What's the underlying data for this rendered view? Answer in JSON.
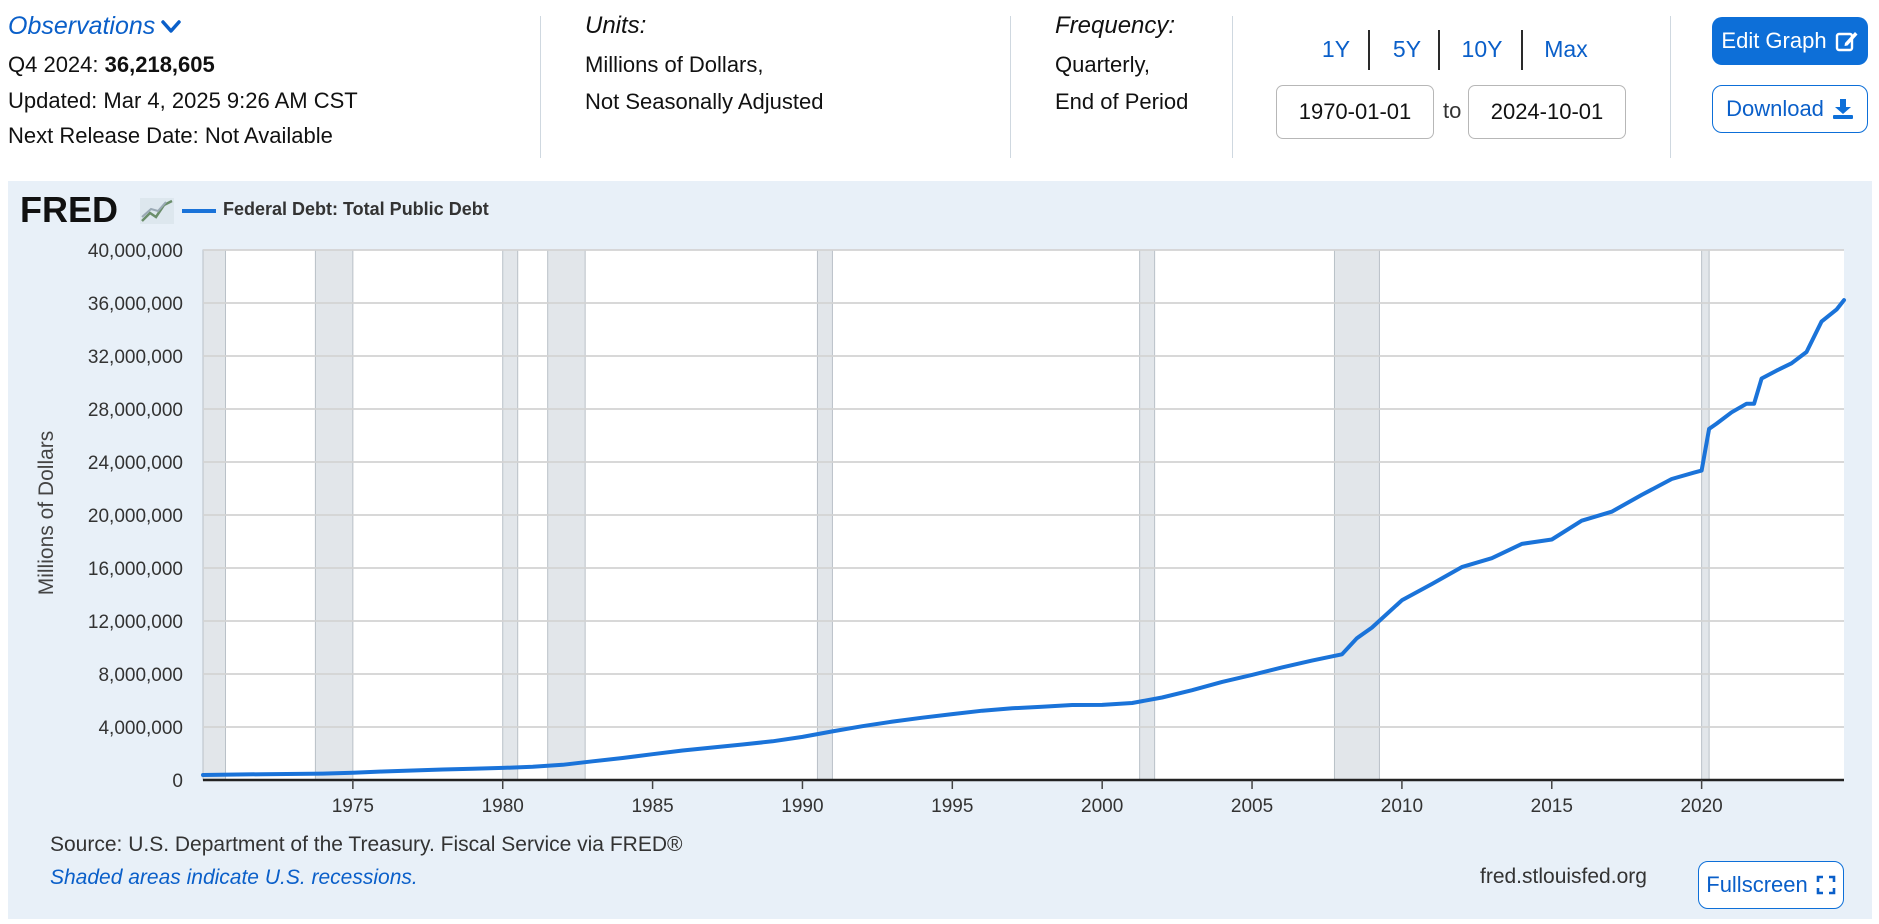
{
  "header": {
    "observations_label": "Observations",
    "obs_period": "Q4 2024:",
    "obs_value": "36,218,605",
    "updated": "Updated: Mar 4, 2025 9:26 AM CST",
    "next_release": "Next Release Date: Not Available",
    "units_label": "Units:",
    "units_line1": "Millions of Dollars,",
    "units_line2": "Not Seasonally Adjusted",
    "frequency_label": "Frequency:",
    "frequency_line1": "Quarterly,",
    "frequency_line2": "End of Period",
    "range_buttons": [
      "1Y",
      "5Y",
      "10Y",
      "Max"
    ],
    "date_from": "1970-01-01",
    "date_to_label": "to",
    "date_to": "2024-10-01",
    "edit_graph": "Edit Graph",
    "download": "Download"
  },
  "footer": {
    "source": "Source: U.S. Department of the Treasury. Fiscal Service via FRED®",
    "shaded_note": "Shaded areas indicate U.S. recessions.",
    "site": "fred.stlouisfed.org",
    "fullscreen": "Fullscreen"
  },
  "brand": {
    "logo_text": "FRED",
    "accent": "#0d6fd8",
    "line_color": "#1a73d9"
  },
  "chart_data": {
    "type": "line",
    "title": "",
    "xlabel": "",
    "ylabel": "Millions of Dollars",
    "legend": "Federal Debt: Total Public Debt",
    "xlim": [
      1970.0,
      2024.75
    ],
    "ylim": [
      0,
      40000000
    ],
    "grid": true,
    "x_ticks": [
      1975,
      1980,
      1985,
      1990,
      1995,
      2000,
      2005,
      2010,
      2015,
      2020
    ],
    "x_tick_labels": [
      "1975",
      "1980",
      "1985",
      "1990",
      "1995",
      "2000",
      "2005",
      "2010",
      "2015",
      "2020"
    ],
    "y_ticks": [
      0,
      4000000,
      8000000,
      12000000,
      16000000,
      20000000,
      24000000,
      28000000,
      32000000,
      36000000,
      40000000
    ],
    "y_tick_labels": [
      "0",
      "4,000,000",
      "8,000,000",
      "12,000,000",
      "16,000,000",
      "20,000,000",
      "24,000,000",
      "28,000,000",
      "32,000,000",
      "36,000,000",
      "40,000,000"
    ],
    "recessions": [
      [
        1970.0,
        1970.75
      ],
      [
        1973.75,
        1975.0
      ],
      [
        1980.0,
        1980.5
      ],
      [
        1981.5,
        1982.75
      ],
      [
        1990.5,
        1991.0
      ],
      [
        2001.25,
        2001.75
      ],
      [
        2007.75,
        2009.25
      ],
      [
        2020.0,
        2020.25
      ]
    ],
    "series": [
      {
        "name": "Federal Debt: Total Public Debt",
        "color": "#1a73d9",
        "x": [
          1970.0,
          1972.0,
          1974.0,
          1975.0,
          1976.0,
          1977.0,
          1978.0,
          1979.0,
          1980.0,
          1981.0,
          1982.0,
          1983.0,
          1984.0,
          1985.0,
          1986.0,
          1987.0,
          1988.0,
          1989.0,
          1990.0,
          1991.0,
          1992.0,
          1993.0,
          1994.0,
          1995.0,
          1996.0,
          1997.0,
          1998.0,
          1999.0,
          2000.0,
          2001.0,
          2002.0,
          2003.0,
          2004.0,
          2005.0,
          2006.0,
          2007.0,
          2008.0,
          2008.5,
          2009.0,
          2010.0,
          2011.0,
          2012.0,
          2013.0,
          2014.0,
          2015.0,
          2016.0,
          2017.0,
          2018.0,
          2019.0,
          2019.75,
          2020.0,
          2020.25,
          2020.5,
          2021.0,
          2021.5,
          2021.75,
          2022.0,
          2022.5,
          2023.0,
          2023.5,
          2024.0,
          2024.5,
          2024.75
        ],
        "values": [
          380000,
          440000,
          480000,
          540000,
          640000,
          720000,
          790000,
          850000,
          910000,
          1000000,
          1150000,
          1410000,
          1660000,
          1950000,
          2230000,
          2450000,
          2680000,
          2920000,
          3250000,
          3670000,
          4060000,
          4410000,
          4700000,
          4970000,
          5230000,
          5410000,
          5530000,
          5660000,
          5670000,
          5810000,
          6230000,
          6780000,
          7400000,
          7930000,
          8500000,
          9010000,
          9490000,
          10700000,
          11500000,
          13560000,
          14790000,
          16070000,
          16740000,
          17820000,
          18150000,
          19570000,
          20250000,
          21520000,
          22720000,
          23200000,
          23350000,
          26500000,
          26900000,
          27750000,
          28400000,
          28400000,
          30300000,
          30900000,
          31450000,
          32300000,
          34600000,
          35500000,
          36218605
        ]
      }
    ]
  }
}
